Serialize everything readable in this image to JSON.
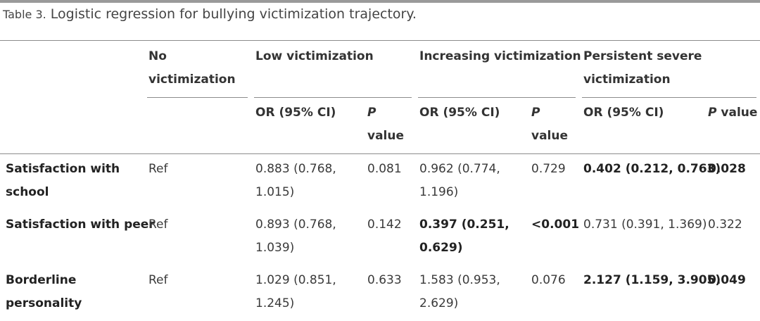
{
  "caption": {
    "label": "Table 3.",
    "text": " Logistic regression for bullying victimization trajectory."
  },
  "header": {
    "group1": [
      "No",
      "victimization"
    ],
    "group2": "Low victimization",
    "group3": "Increasing victimization",
    "group4": [
      "Persistent severe",
      "victimization"
    ],
    "or_ci": "OR (95% CI)",
    "p": "P",
    "value": "value",
    "p_value_p": "P",
    "p_value_rest": " value"
  },
  "rows": [
    {
      "label": [
        "Satisfaction with",
        "school"
      ],
      "ref": "Ref",
      "low_or": [
        "0.883 (0.768,",
        "1.015)"
      ],
      "low_p": "0.081",
      "inc_or": [
        "0.962 (0.774,",
        "1.196)"
      ],
      "inc_p": "0.729",
      "pers_or": "0.402 (0.212, 0.763)",
      "pers_p": "0.028"
    },
    {
      "label": [
        "Satisfaction with peer"
      ],
      "ref": "Ref",
      "low_or": [
        "0.893 (0.768,",
        "1.039)"
      ],
      "low_p": "0.142",
      "inc_or": [
        "0.397 (0.251,",
        "0.629)"
      ],
      "inc_p": "<0.001",
      "pers_or": "0.731 (0.391, 1.369)",
      "pers_p": "0.322"
    },
    {
      "label": [
        "Borderline",
        "personality"
      ],
      "ref": "Ref",
      "low_or": [
        "1.029 (0.851,",
        "1.245)"
      ],
      "low_p": "0.633",
      "inc_or": [
        "1.583 (0.953,",
        "2.629)"
      ],
      "inc_p": "0.076",
      "pers_or": "2.127 (1.159, 3.905)",
      "pers_p": "0.049"
    }
  ]
}
